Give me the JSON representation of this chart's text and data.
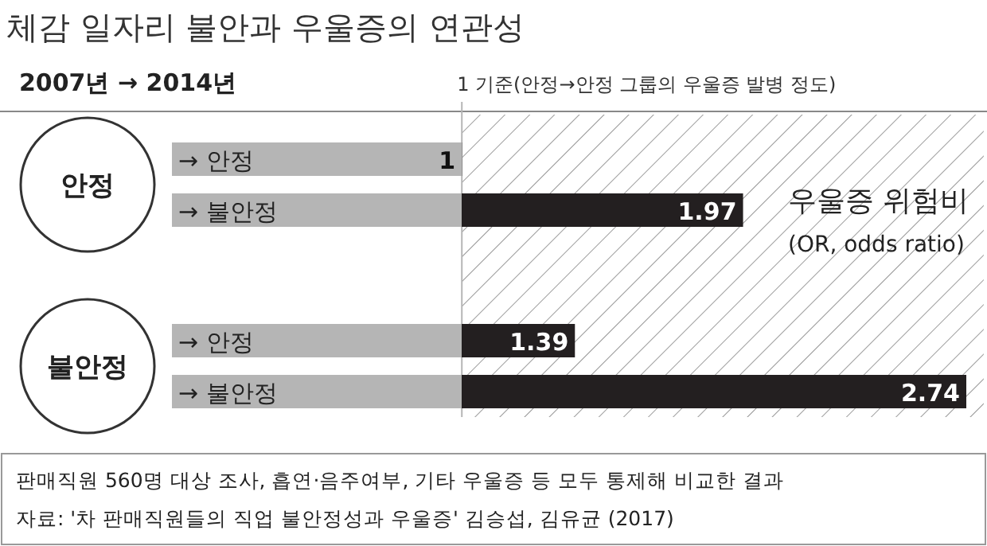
{
  "chart_data": {
    "type": "bar",
    "orientation": "horizontal",
    "title": "체감 일자리 불안과 우울증의 연관성",
    "categories": [
      "→ 안정",
      "→ 불안정",
      "→ 안정",
      "→ 불안정"
    ],
    "series": [
      {
        "color": "#231f20",
        "values": [
          1,
          1.97,
          1.39,
          2.74
        ]
      }
    ],
    "data_labels": true,
    "bands": [
      {
        "axis": "x",
        "from": 1,
        "to": 2.8,
        "color": "#9a9a9a"
      }
    ],
    "ref_lines": [
      {
        "axis": "x",
        "value": 1,
        "label": "1 기준(안정→안정 그룹의 우울증 발병 정도)",
        "color": "#b5b5b5"
      }
    ],
    "annotations": [
      "2007년 → 2014년",
      "안정",
      "불안정",
      "우울증 위험비",
      "(OR, odds ratio)",
      "판매직원 560명 대상 조사, 흡연·음주여부, 기타 우울증 등 모두 통제해 비교한 결과",
      "자료: '차 판매직원들의 직업 불안정성과 우울증' 김승섭, 김유균 (2017)"
    ]
  }
}
